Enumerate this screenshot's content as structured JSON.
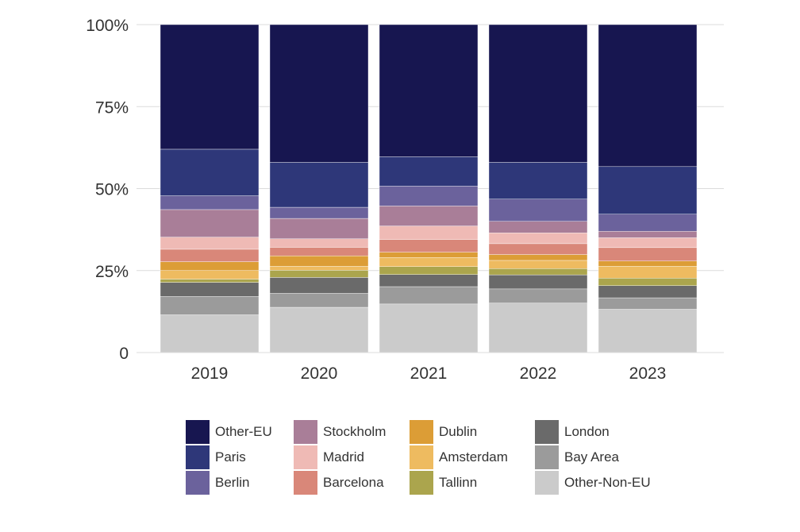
{
  "chart_data": {
    "type": "bar",
    "stacked": true,
    "categories": [
      "2019",
      "2020",
      "2021",
      "2022",
      "2023"
    ],
    "ylim": [
      0,
      100
    ],
    "yticks": [
      0,
      25,
      50,
      75,
      100
    ],
    "ytick_labels": [
      "0",
      "25%",
      "50%",
      "75%",
      "100%"
    ],
    "grid": true,
    "legend_position": "bottom",
    "series": [
      {
        "name": "Other-Non-EU",
        "color": "#cbcbcb",
        "values": [
          11.5,
          13.8,
          14.8,
          15.1,
          13.2
        ]
      },
      {
        "name": "Bay Area",
        "color": "#9b9b9b",
        "values": [
          5.6,
          4.3,
          5.3,
          4.3,
          3.5
        ]
      },
      {
        "name": "London",
        "color": "#6a6a6a",
        "values": [
          4.3,
          4.8,
          3.7,
          4.3,
          3.7
        ]
      },
      {
        "name": "Tallinn",
        "color": "#aba54d",
        "values": [
          1.0,
          2.2,
          2.4,
          1.9,
          2.3
        ]
      },
      {
        "name": "Amsterdam",
        "color": "#eebb60",
        "values": [
          2.6,
          1.2,
          2.8,
          2.5,
          3.6
        ]
      },
      {
        "name": "Dublin",
        "color": "#dc9d36",
        "values": [
          2.7,
          3.2,
          1.6,
          1.8,
          1.6
        ]
      },
      {
        "name": "Barcelona",
        "color": "#d98779",
        "values": [
          3.8,
          2.6,
          3.9,
          3.3,
          4.1
        ]
      },
      {
        "name": "Madrid",
        "color": "#efbab5",
        "values": [
          3.7,
          2.6,
          4.1,
          3.3,
          3.0
        ]
      },
      {
        "name": "Stockholm",
        "color": "#a97e98",
        "values": [
          8.4,
          6.2,
          6.1,
          3.5,
          2.0
        ]
      },
      {
        "name": "Berlin",
        "color": "#6b629c",
        "values": [
          4.2,
          3.4,
          6.1,
          6.8,
          5.2
        ]
      },
      {
        "name": "Paris",
        "color": "#2e3779",
        "values": [
          14.2,
          13.7,
          8.9,
          11.2,
          14.5
        ]
      },
      {
        "name": "Other-EU",
        "color": "#171650",
        "values": [
          38.0,
          42.0,
          40.3,
          42.0,
          43.3
        ]
      }
    ]
  },
  "legend": {
    "columns": [
      [
        "Other-EU",
        "Paris",
        "Berlin"
      ],
      [
        "Stockholm",
        "Madrid",
        "Barcelona"
      ],
      [
        "Dublin",
        "Amsterdam",
        "Tallinn"
      ],
      [
        "London",
        "Bay Area",
        "Other-Non-EU"
      ]
    ]
  },
  "colors": {
    "grid": "#dcdcdc",
    "axis_text": "#333333"
  }
}
